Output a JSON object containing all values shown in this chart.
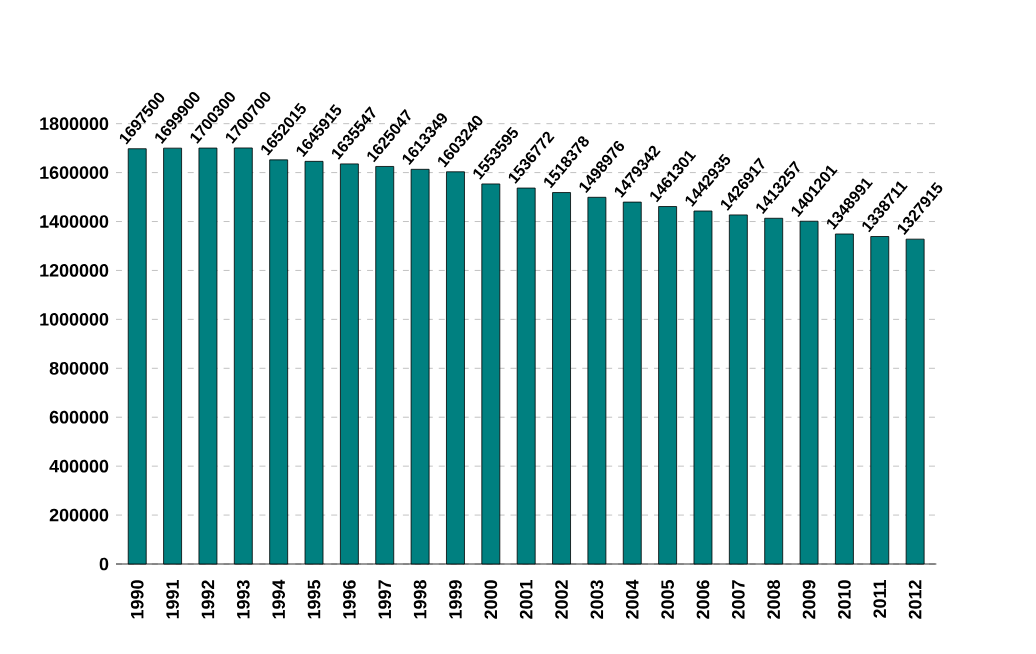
{
  "chart_data": {
    "type": "bar",
    "categories": [
      "1990",
      "1991",
      "1992",
      "1993",
      "1994",
      "1995",
      "1996",
      "1997",
      "1998",
      "1999",
      "2000",
      "2001",
      "2002",
      "2003",
      "2004",
      "2005",
      "2006",
      "2007",
      "2008",
      "2009",
      "2010",
      "2011",
      "2012"
    ],
    "values": [
      1697500,
      1699900,
      1700300,
      1700700,
      1652015,
      1645915,
      1635547,
      1625047,
      1613349,
      1603240,
      1553595,
      1536772,
      1518378,
      1498976,
      1479342,
      1461301,
      1442935,
      1426917,
      1413257,
      1401201,
      1348991,
      1338711,
      1327915
    ],
    "color": "#008080",
    "data_labels": true,
    "grid": "y",
    "ylim": [
      0,
      1800000
    ],
    "yticks": [
      0,
      200000,
      400000,
      600000,
      800000,
      1000000,
      1200000,
      1400000,
      1600000,
      1800000
    ]
  }
}
